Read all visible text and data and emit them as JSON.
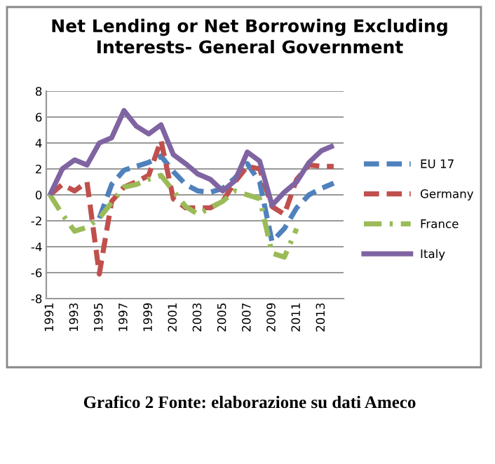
{
  "chart_data": {
    "type": "line",
    "title": "Net Lending or Net Borrowing Excluding\nInterests- General Government",
    "categories": [
      "1991",
      null,
      "1993",
      null,
      "1995",
      null,
      "1997",
      null,
      "1999",
      null,
      "2001",
      null,
      "2003",
      null,
      "2005",
      null,
      "2007",
      null,
      "2009",
      null,
      "2011",
      null,
      "2013",
      null
    ],
    "series": [
      {
        "name": "EU 17",
        "color": "#4f81bd",
        "line_style": "dashed",
        "values": [
          null,
          null,
          null,
          null,
          -1.8,
          0.8,
          1.9,
          2.2,
          2.5,
          3.0,
          1.8,
          0.8,
          0.3,
          0.2,
          0.5,
          1.3,
          2.4,
          1.0,
          -3.6,
          -2.6,
          -1.0,
          0.0,
          0.5,
          0.9
        ]
      },
      {
        "name": "Germany",
        "color": "#c0504d",
        "line_style": "dashed",
        "values": [
          0,
          0.8,
          0.3,
          1.0,
          -6.1,
          -0.5,
          0.6,
          1.0,
          1.5,
          4.2,
          -0.3,
          -1.0,
          -1.0,
          -1.0,
          -0.5,
          1.0,
          2.2,
          2.0,
          -0.9,
          -1.5,
          1.2,
          2.3,
          2.2,
          2.2
        ]
      },
      {
        "name": "France",
        "color": "#9bbb59",
        "line_style": "dashdot",
        "values": [
          0,
          -1.5,
          -2.8,
          -2.5,
          -1.8,
          -0.6,
          0.6,
          0.8,
          1.2,
          1.5,
          0.3,
          -0.9,
          -1.5,
          -1.0,
          -0.5,
          0.3,
          0.0,
          -0.3,
          -4.5,
          -4.8,
          -2.6,
          null,
          null,
          null
        ]
      },
      {
        "name": "Italy",
        "color": "#8064a2",
        "line_style": "solid",
        "values": [
          0,
          2.0,
          2.7,
          2.3,
          4.0,
          4.4,
          6.5,
          5.3,
          4.7,
          5.4,
          3.1,
          2.4,
          1.6,
          1.2,
          0.3,
          1.1,
          3.3,
          2.6,
          -0.8,
          0.2,
          1.0,
          2.5,
          3.4,
          3.8
        ]
      }
    ],
    "ylim": [
      -8,
      8
    ],
    "yticks": [
      -8,
      -6,
      -4,
      -2,
      0,
      2,
      4,
      6,
      8
    ],
    "grid": "y",
    "legend": "right",
    "marker": "none",
    "annotations": [
      "Grafico 2 Fonte: elaborazione su dati Ameco"
    ]
  }
}
